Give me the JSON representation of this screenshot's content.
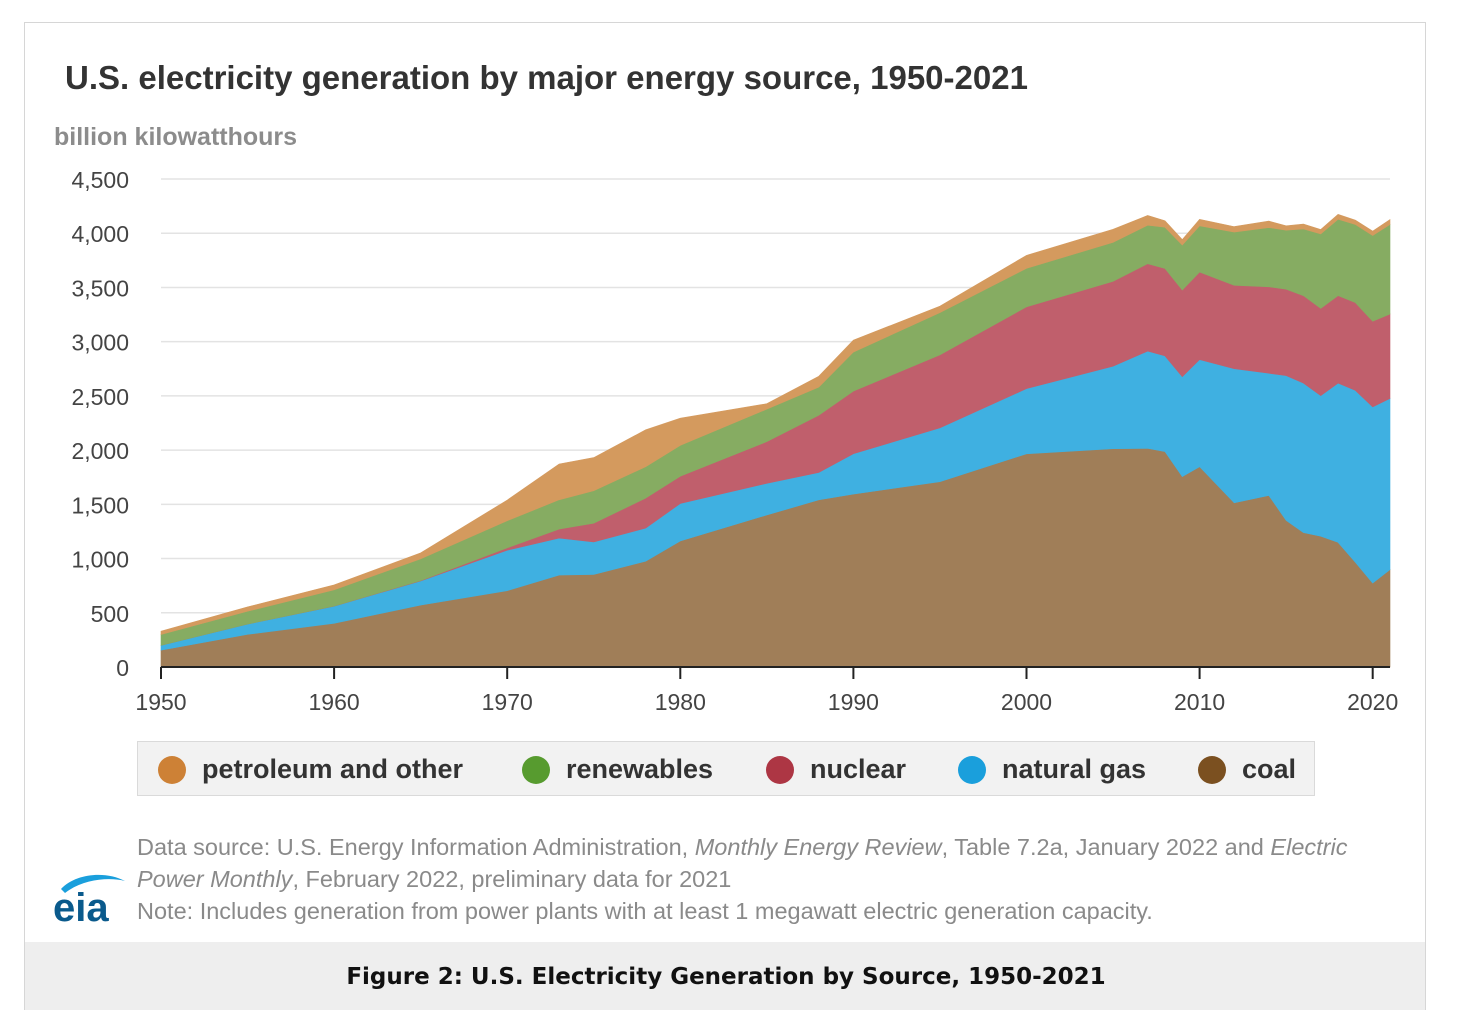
{
  "header": {
    "title": "U.S. electricity generation by major energy source, 1950-2021",
    "unit": "billion kilowatthours"
  },
  "chart_data": {
    "type": "area",
    "stacked": true,
    "title": "U.S. electricity generation by major energy source, 1950-2021",
    "ylabel": "billion kilowatthours",
    "xlabel": "",
    "xlim": [
      1950,
      2021
    ],
    "ylim": [
      0,
      4500
    ],
    "x_ticks": [
      1950,
      1960,
      1970,
      1980,
      1990,
      2000,
      2010,
      2020
    ],
    "y_ticks": [
      0,
      500,
      1000,
      1500,
      2000,
      2500,
      3000,
      3500,
      4000,
      4500
    ],
    "y_tick_labels": [
      "0",
      "500",
      "1,000",
      "1,500",
      "2,000",
      "2,500",
      "3,000",
      "3,500",
      "4,000",
      "4,500"
    ],
    "grid": true,
    "x": [
      1950,
      1955,
      1960,
      1965,
      1970,
      1973,
      1975,
      1978,
      1980,
      1985,
      1988,
      1990,
      1995,
      2000,
      2005,
      2007,
      2008,
      2009,
      2010,
      2012,
      2014,
      2015,
      2016,
      2017,
      2018,
      2019,
      2020,
      2021
    ],
    "series": [
      {
        "name": "coal",
        "color": "#a07e58",
        "values": [
          155,
          301,
          403,
          571,
          704,
          848,
          853,
          976,
          1162,
          1402,
          1541,
          1594,
          1709,
          1966,
          2013,
          2016,
          1986,
          1756,
          1847,
          1514,
          1582,
          1352,
          1239,
          1206,
          1149,
          965,
          774,
          898
        ]
      },
      {
        "name": "natural gas",
        "color": "#3fb0e1",
        "values": [
          45,
          95,
          158,
          222,
          373,
          341,
          300,
          305,
          346,
          292,
          253,
          373,
          496,
          601,
          761,
          897,
          883,
          921,
          988,
          1237,
          1127,
          1335,
          1379,
          1296,
          1469,
          1586,
          1624,
          1579
        ]
      },
      {
        "name": "nuclear",
        "color": "#c05f6c",
        "values": [
          0,
          0,
          1,
          4,
          22,
          83,
          173,
          276,
          251,
          384,
          527,
          577,
          673,
          754,
          782,
          806,
          806,
          799,
          807,
          769,
          797,
          797,
          806,
          805,
          807,
          809,
          790,
          778
        ]
      },
      {
        "name": "renewables",
        "color": "#86ac62",
        "values": [
          100,
          118,
          150,
          200,
          250,
          270,
          300,
          290,
          285,
          300,
          260,
          360,
          390,
          355,
          360,
          355,
          380,
          415,
          426,
          491,
          546,
          544,
          615,
          687,
          704,
          721,
          791,
          826
        ]
      },
      {
        "name": "petroleum and other",
        "color": "#d49a5e",
        "values": [
          30,
          40,
          45,
          55,
          190,
          330,
          305,
          340,
          250,
          50,
          100,
          110,
          60,
          120,
          120,
          90,
          60,
          50,
          60,
          50,
          60,
          40,
          45,
          40,
          45,
          40,
          40,
          45
        ]
      }
    ],
    "legend_position": "bottom"
  },
  "legend": {
    "items": [
      {
        "label": "petroleum and other",
        "color": "#cd8136"
      },
      {
        "label": "renewables",
        "color": "#579b2f"
      },
      {
        "label": "nuclear",
        "color": "#ad3644"
      },
      {
        "label": "natural gas",
        "color": "#1a9fdc"
      },
      {
        "label": "coal",
        "color": "#7b5020"
      }
    ]
  },
  "source": {
    "line1_prefix": "Data source: U.S. Energy Information Administration, ",
    "line1_italic": "Monthly Energy Review",
    "line1_mid": ", Table 7.2a, January 2022 and ",
    "line1_italic2": "Electric",
    "line2_italic": "Power Monthly",
    "line2_rest": ", February 2022, preliminary data for 2021",
    "note": "Note: Includes generation from power plants with at least 1 megawatt electric generation capacity."
  },
  "logo": {
    "text": "eia",
    "color": "#0a5a8c",
    "swoosh_color": "#1a9fdc"
  },
  "caption": "Figure 2: U.S. Electricity Generation by Source, 1950-2021"
}
